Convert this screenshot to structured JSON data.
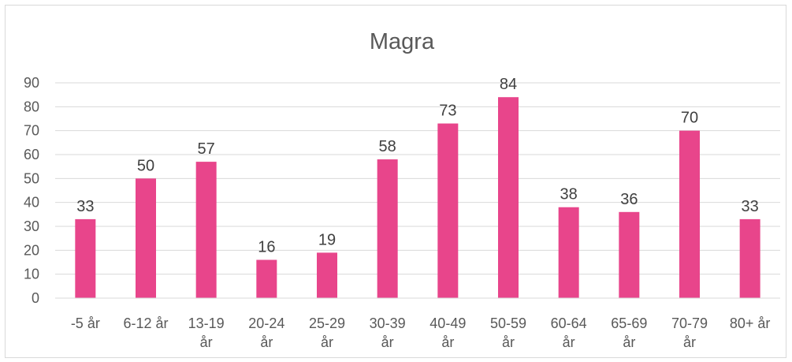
{
  "chart_data": {
    "type": "bar",
    "title": "Magra",
    "xlabel": "",
    "ylabel": "",
    "categories": [
      "-5 år",
      "6-12 år",
      "13-19 år",
      "20-24 år",
      "25-29 år",
      "30-39 år",
      "40-49 år",
      "50-59 år",
      "60-64 år",
      "65-69 år",
      "70-79 år",
      "80+ år"
    ],
    "values": [
      33,
      50,
      57,
      16,
      19,
      58,
      73,
      84,
      38,
      36,
      70,
      33
    ],
    "ylim": [
      0,
      90
    ],
    "yticks": [
      0,
      10,
      20,
      30,
      40,
      50,
      60,
      70,
      80,
      90
    ],
    "grid": true,
    "data_labels": true,
    "legend": "none",
    "bar_color": "#e8458b",
    "grid_color": "#d9d9d9"
  }
}
